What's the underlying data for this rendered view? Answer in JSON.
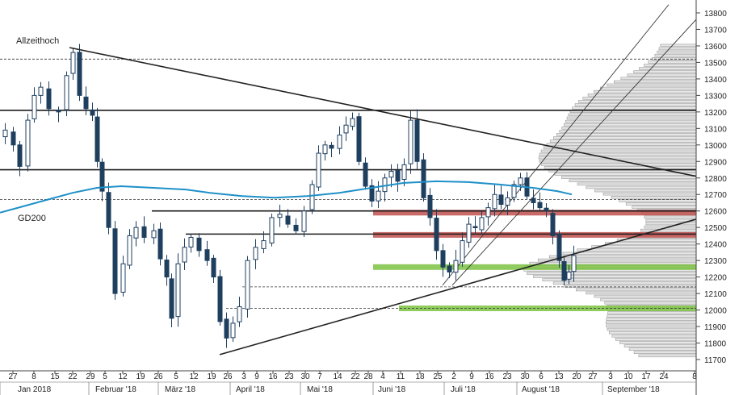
{
  "chart_data": {
    "type": "candlestick",
    "annotations": {
      "all_time_high": "Allzeithoch",
      "moving_average": "GD200"
    },
    "y_axis": {
      "position": "right",
      "ylim": [
        11650,
        13850
      ],
      "ticks": [
        11700,
        11800,
        11900,
        12000,
        12100,
        12200,
        12300,
        12400,
        12500,
        12600,
        12700,
        12800,
        12900,
        13000,
        13100,
        13200,
        13300,
        13400,
        13500,
        13600,
        13700,
        13800
      ]
    },
    "x_axis": {
      "day_ticks": [
        "27",
        "8",
        "15",
        "22",
        "29",
        "5",
        "12",
        "19",
        "26",
        "5",
        "12",
        "19",
        "26",
        "3",
        "9",
        "16",
        "23",
        "30",
        "7",
        "14",
        "22",
        "28",
        "4",
        "11",
        "18",
        "25",
        "2",
        "9",
        "16",
        "23",
        "30",
        "6",
        "13",
        "20",
        "27",
        "3",
        "10",
        "17",
        "24",
        "8"
      ],
      "month_labels": [
        "Jan 2018",
        "Februar '18",
        "März '18",
        "April '18",
        "Mai '18",
        "Juni '18",
        "Juli '18",
        "August '18",
        "September '18"
      ]
    },
    "horizontal_lines": [
      13210,
      12850,
      12460,
      12600
    ],
    "dashed_lines": [
      13520,
      12670,
      12140,
      12010
    ],
    "zones": [
      {
        "kind": "resistance",
        "value": 12590,
        "color": "#c0504d"
      },
      {
        "kind": "resistance",
        "value": 12455,
        "color": "#c0504d"
      },
      {
        "kind": "support",
        "value": 12260,
        "color": "#7dc242"
      },
      {
        "kind": "support",
        "value": 12010,
        "color": "#7dc242"
      }
    ],
    "colors": {
      "candle": "#1f3f5f",
      "moving_average": "#1e90c8",
      "trendline": "#222222",
      "volume_profile": "#e6e6e6"
    }
  }
}
